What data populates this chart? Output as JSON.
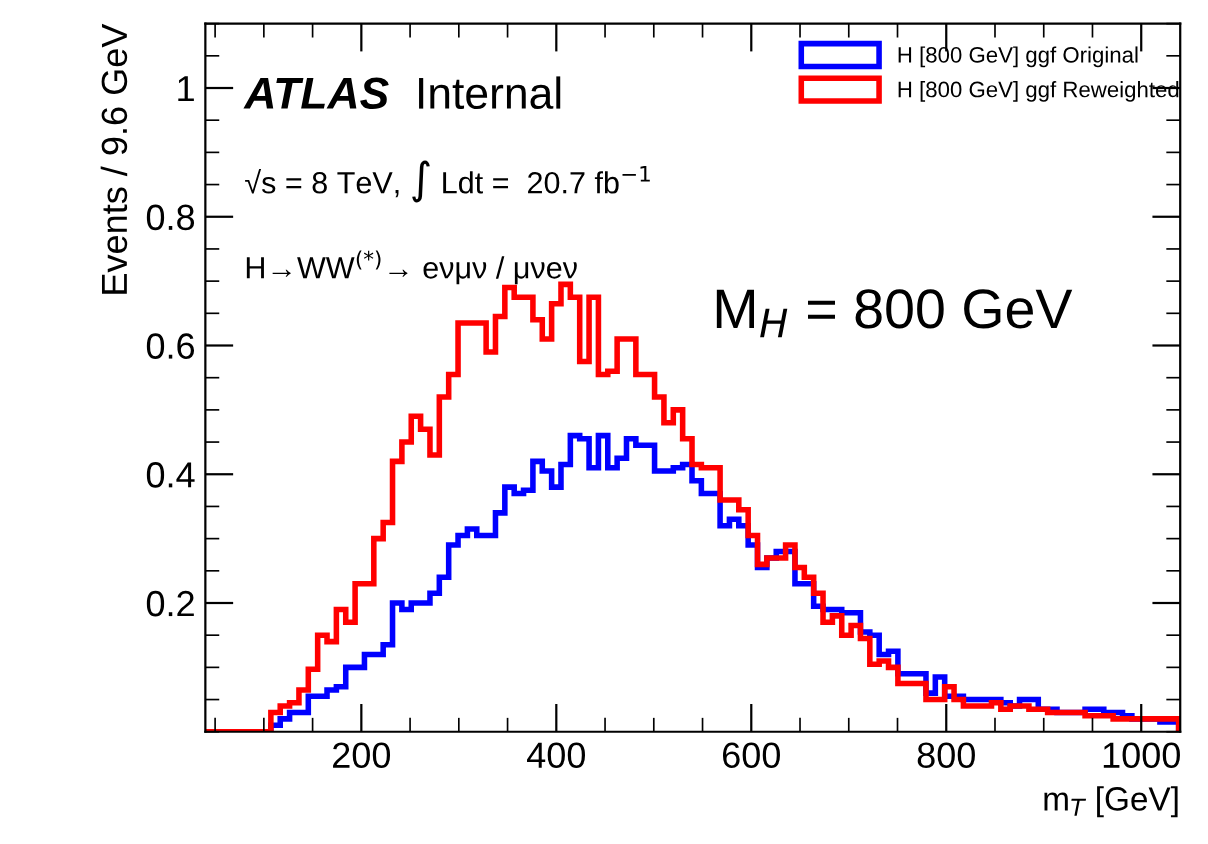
{
  "chart_data": {
    "type": "histogram",
    "xlabel": "m$_{T}$ [GeV]",
    "ylabel": "Events / 9.6 GeV",
    "bins": [
      40,
      49.6,
      59.2,
      68.8,
      78.4,
      88,
      97.6,
      107.2,
      116.8,
      126.4,
      136,
      145.6,
      155.2,
      164.8,
      174.4,
      184,
      193.6,
      203.2,
      212.8,
      222.4,
      232,
      241.6,
      251.2,
      260.8,
      270.4,
      280,
      289.6,
      299.2,
      308.8,
      318.4,
      328,
      337.6,
      347.2,
      356.8,
      366.4,
      376,
      385.6,
      395.2,
      404.8,
      414.4,
      424,
      433.6,
      443.2,
      452.8,
      462.4,
      472,
      481.6,
      491.2,
      500.8,
      510.4,
      520,
      529.6,
      539.2,
      548.8,
      558.4,
      568,
      577.6,
      587.2,
      596.8,
      606.4,
      616,
      625.6,
      635.2,
      644.8,
      654.4,
      664,
      673.6,
      683.2,
      692.8,
      702.4,
      712,
      721.6,
      731.2,
      740.8,
      750.4,
      760,
      769.6,
      779.2,
      788.8,
      798.4,
      808,
      817.6,
      827.2,
      836.8,
      846.4,
      856,
      865.6,
      875.2,
      884.8,
      894.4,
      904,
      913.6,
      923.2,
      932.8,
      942.4,
      952,
      961.6,
      971.2,
      980.8,
      990.4,
      1000,
      1009.6,
      1019.2,
      1028.8,
      1038.4
    ],
    "series": [
      {
        "name": "H [800 GeV] ggf Original",
        "color": "#0000ff",
        "values": [
          0,
          0,
          0,
          0,
          0,
          0,
          0,
          0.01,
          0.02,
          0.03,
          0.03,
          0.055,
          0.055,
          0.065,
          0.07,
          0.1,
          0.1,
          0.12,
          0.12,
          0.135,
          0.2,
          0.19,
          0.2,
          0.2,
          0.215,
          0.24,
          0.29,
          0.305,
          0.315,
          0.305,
          0.305,
          0.34,
          0.38,
          0.37,
          0.375,
          0.42,
          0.405,
          0.38,
          0.415,
          0.46,
          0.455,
          0.41,
          0.46,
          0.41,
          0.425,
          0.455,
          0.445,
          0.445,
          0.405,
          0.405,
          0.41,
          0.415,
          0.39,
          0.37,
          0.37,
          0.32,
          0.33,
          0.32,
          0.29,
          0.255,
          0.27,
          0.28,
          0.28,
          0.23,
          0.23,
          0.195,
          0.19,
          0.19,
          0.185,
          0.185,
          0.155,
          0.15,
          0.12,
          0.125,
          0.09,
          0.09,
          0.09,
          0.06,
          0.085,
          0.055,
          0.055,
          0.05,
          0.05,
          0.05,
          0.05,
          0.045,
          0.04,
          0.05,
          0.05,
          0.035,
          0.035,
          0.03,
          0.03,
          0.03,
          0.035,
          0.035,
          0.03,
          0.03,
          0.025,
          0.02,
          0.02,
          0.02,
          0.015,
          0.015
        ]
      },
      {
        "name": "H [800 GeV] ggf Reweighted",
        "color": "#ff0000",
        "values": [
          0,
          0,
          0,
          0,
          0,
          0,
          0,
          0.03,
          0.04,
          0.045,
          0.065,
          0.097,
          0.15,
          0.14,
          0.19,
          0.17,
          0.23,
          0.23,
          0.3,
          0.325,
          0.42,
          0.45,
          0.49,
          0.47,
          0.43,
          0.52,
          0.555,
          0.635,
          0.635,
          0.635,
          0.59,
          0.645,
          0.69,
          0.675,
          0.675,
          0.64,
          0.61,
          0.665,
          0.695,
          0.675,
          0.575,
          0.675,
          0.555,
          0.56,
          0.61,
          0.61,
          0.555,
          0.555,
          0.52,
          0.48,
          0.5,
          0.455,
          0.415,
          0.41,
          0.41,
          0.36,
          0.36,
          0.345,
          0.305,
          0.26,
          0.27,
          0.27,
          0.29,
          0.255,
          0.24,
          0.215,
          0.17,
          0.18,
          0.15,
          0.165,
          0.145,
          0.105,
          0.11,
          0.1,
          0.075,
          0.075,
          0.075,
          0.05,
          0.05,
          0.07,
          0.05,
          0.04,
          0.04,
          0.04,
          0.045,
          0.035,
          0.04,
          0.04,
          0.035,
          0.035,
          0.03,
          0.03,
          0.03,
          0.03,
          0.025,
          0.025,
          0.025,
          0.02,
          0.02,
          0.02,
          0.02,
          0.02,
          0.02,
          0.02
        ]
      }
    ],
    "xlim": [
      40,
      1040
    ],
    "ylim": [
      0,
      1.1
    ],
    "xticks": [
      200,
      400,
      600,
      800,
      1000
    ],
    "yticks": [
      {
        "value": 0.2,
        "label": "0.2"
      },
      {
        "value": 0.4,
        "label": "0.4"
      },
      {
        "value": 0.6,
        "label": "0.6"
      },
      {
        "value": 0.8,
        "label": "0.8"
      },
      {
        "value": 1,
        "label": "1"
      }
    ],
    "legend": "top right",
    "grid": false,
    "annotations": [
      "ATLAS",
      "Internal",
      "√s = 8 TeV, ∫ Ldt =  20.7 fb$^{−1}$",
      "H→WW$^{(*)}$→ eνμν / μνeν",
      "M$_{H}$ = 800 GeV"
    ]
  }
}
